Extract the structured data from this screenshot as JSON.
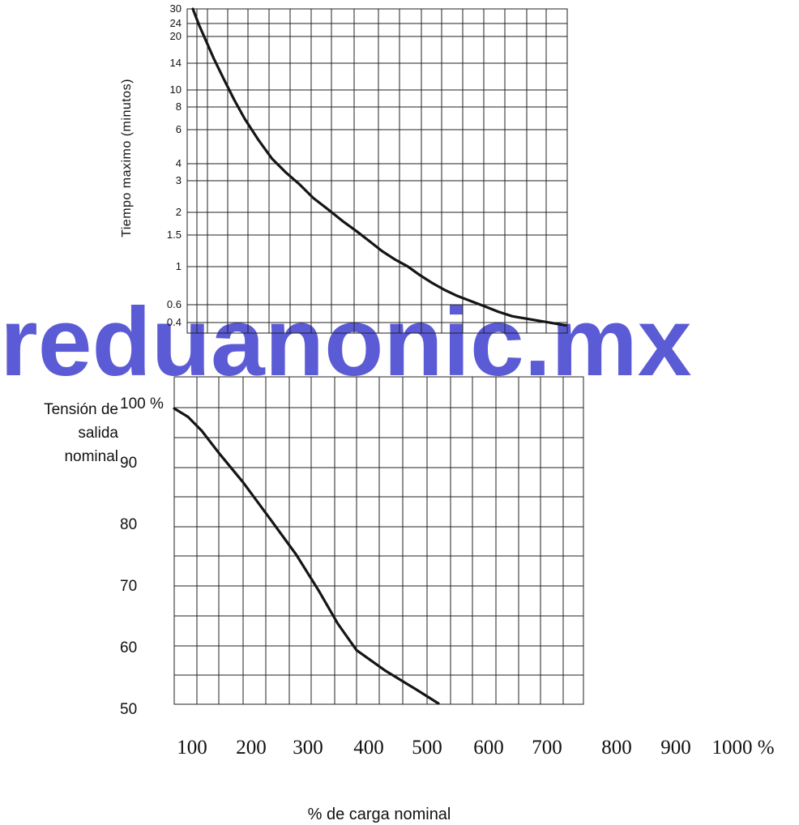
{
  "watermark": {
    "text": "reduanonic.mx",
    "color": "#5b5bd6"
  },
  "chart_data": [
    {
      "type": "line",
      "title": "",
      "ylabel": "Tiempo maximo (minutos)",
      "xlabel": "",
      "grid": true,
      "ytick_labels": [
        "30",
        "24",
        "20",
        "14",
        "10",
        "8",
        "6",
        "4",
        "3",
        "2",
        "1.5",
        "1",
        "0.6",
        "0.4"
      ],
      "series": [
        {
          "x": [
            100,
            112,
            125,
            140,
            160,
            180,
            200,
            225,
            250,
            275,
            300,
            325,
            350,
            375,
            400,
            425,
            450,
            475,
            500,
            525,
            550,
            575,
            600,
            625,
            650,
            675,
            700,
            725,
            750
          ],
          "y": [
            30,
            24,
            19.5,
            15.5,
            11.8,
            9.0,
            7.1,
            5.5,
            4.4,
            3.6,
            2.95,
            2.5,
            2.15,
            1.85,
            1.62,
            1.43,
            1.27,
            1.14,
            1.03,
            0.93,
            0.85,
            0.78,
            0.72,
            0.665,
            0.61,
            0.56,
            0.52,
            0.48,
            0.44
          ]
        }
      ]
    },
    {
      "type": "line",
      "title": "",
      "ylabel": "Tensión de salida nominal",
      "xlabel": "% de carga nominal",
      "grid": true,
      "ytick_labels": [
        "100 %",
        "90",
        "80",
        "70",
        "60",
        "50"
      ],
      "xtick_labels": [
        "100",
        "200",
        "300",
        "400",
        "500",
        "600",
        "700",
        "800",
        "900",
        "1000 %"
      ],
      "series": [
        {
          "x": [
            100,
            120,
            140,
            165,
            200,
            240,
            280,
            320,
            360,
            400,
            440,
            480,
            520
          ],
          "y": [
            100,
            98.5,
            96,
            92,
            87,
            81,
            75,
            69,
            63.5,
            59,
            55.5,
            52.5,
            50
          ]
        }
      ]
    }
  ]
}
